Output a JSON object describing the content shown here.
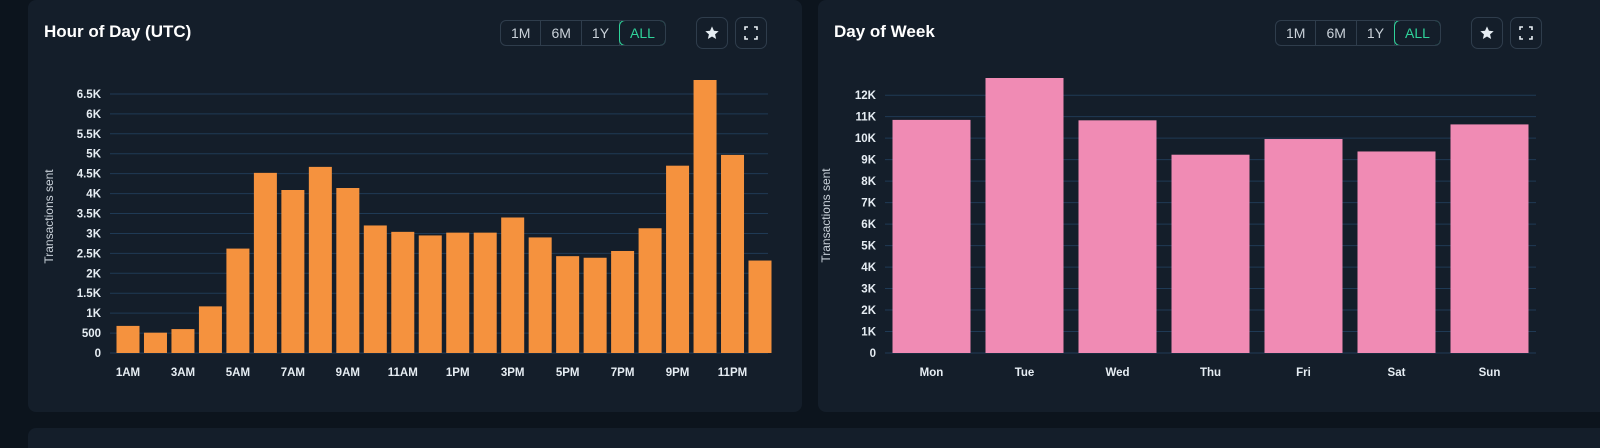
{
  "panels": [
    {
      "title": "Hour of Day (UTC)",
      "ranges": [
        "1M",
        "6M",
        "1Y",
        "ALL"
      ],
      "active_range": "ALL",
      "star_icon": "star-icon",
      "expand_icon": "expand-icon"
    },
    {
      "title": "Day of Week",
      "ranges": [
        "1M",
        "6M",
        "1Y",
        "ALL"
      ],
      "active_range": "ALL",
      "star_icon": "star-icon",
      "expand_icon": "expand-icon"
    }
  ],
  "chart_data": [
    {
      "type": "bar",
      "title": "Hour of Day (UTC)",
      "ylabel": "Transactions sent",
      "xlabel": "",
      "color": "#f5923e",
      "categories": [
        "1AM",
        "2AM",
        "3AM",
        "4AM",
        "5AM",
        "6AM",
        "7AM",
        "8AM",
        "9AM",
        "10AM",
        "11AM",
        "12PM",
        "1PM",
        "2PM",
        "3PM",
        "4PM",
        "5PM",
        "6PM",
        "7PM",
        "8PM",
        "9PM",
        "10PM",
        "11PM",
        "12AM"
      ],
      "x_tick_labels": [
        "1AM",
        "3AM",
        "5AM",
        "7AM",
        "9AM",
        "11AM",
        "1PM",
        "3PM",
        "5PM",
        "7PM",
        "9PM",
        "11PM"
      ],
      "values": [
        680,
        510,
        600,
        1170,
        2620,
        4520,
        4090,
        4670,
        4140,
        3200,
        3040,
        2950,
        3020,
        3020,
        3400,
        2900,
        2430,
        2390,
        2560,
        3130,
        4700,
        6850,
        4970,
        2320
      ],
      "y_ticks": [
        "0",
        "500",
        "1K",
        "1.5K",
        "2K",
        "2.5K",
        "3K",
        "3.5K",
        "4K",
        "4.5K",
        "5K",
        "5.5K",
        "6K",
        "6.5K"
      ],
      "y_tick_values": [
        0,
        500,
        1000,
        1500,
        2000,
        2500,
        3000,
        3500,
        4000,
        4500,
        5000,
        5500,
        6000,
        6500
      ],
      "ylim": [
        0,
        6850
      ],
      "grid": true
    },
    {
      "type": "bar",
      "title": "Day of Week",
      "ylabel": "Transactions sent",
      "xlabel": "",
      "color": "#f08bb4",
      "categories": [
        "Mon",
        "Tue",
        "Wed",
        "Thu",
        "Fri",
        "Sat",
        "Sun"
      ],
      "x_tick_labels": [
        "Mon",
        "Tue",
        "Wed",
        "Thu",
        "Fri",
        "Sat",
        "Sun"
      ],
      "values": [
        10850,
        12800,
        10830,
        9230,
        9960,
        9380,
        10640
      ],
      "y_ticks": [
        "0",
        "1K",
        "2K",
        "3K",
        "4K",
        "5K",
        "6K",
        "7K",
        "8K",
        "9K",
        "10K",
        "11K",
        "12K"
      ],
      "y_tick_values": [
        0,
        1000,
        2000,
        3000,
        4000,
        5000,
        6000,
        7000,
        8000,
        9000,
        10000,
        11000,
        12000
      ],
      "ylim": [
        0,
        12800
      ],
      "grid": true
    }
  ]
}
